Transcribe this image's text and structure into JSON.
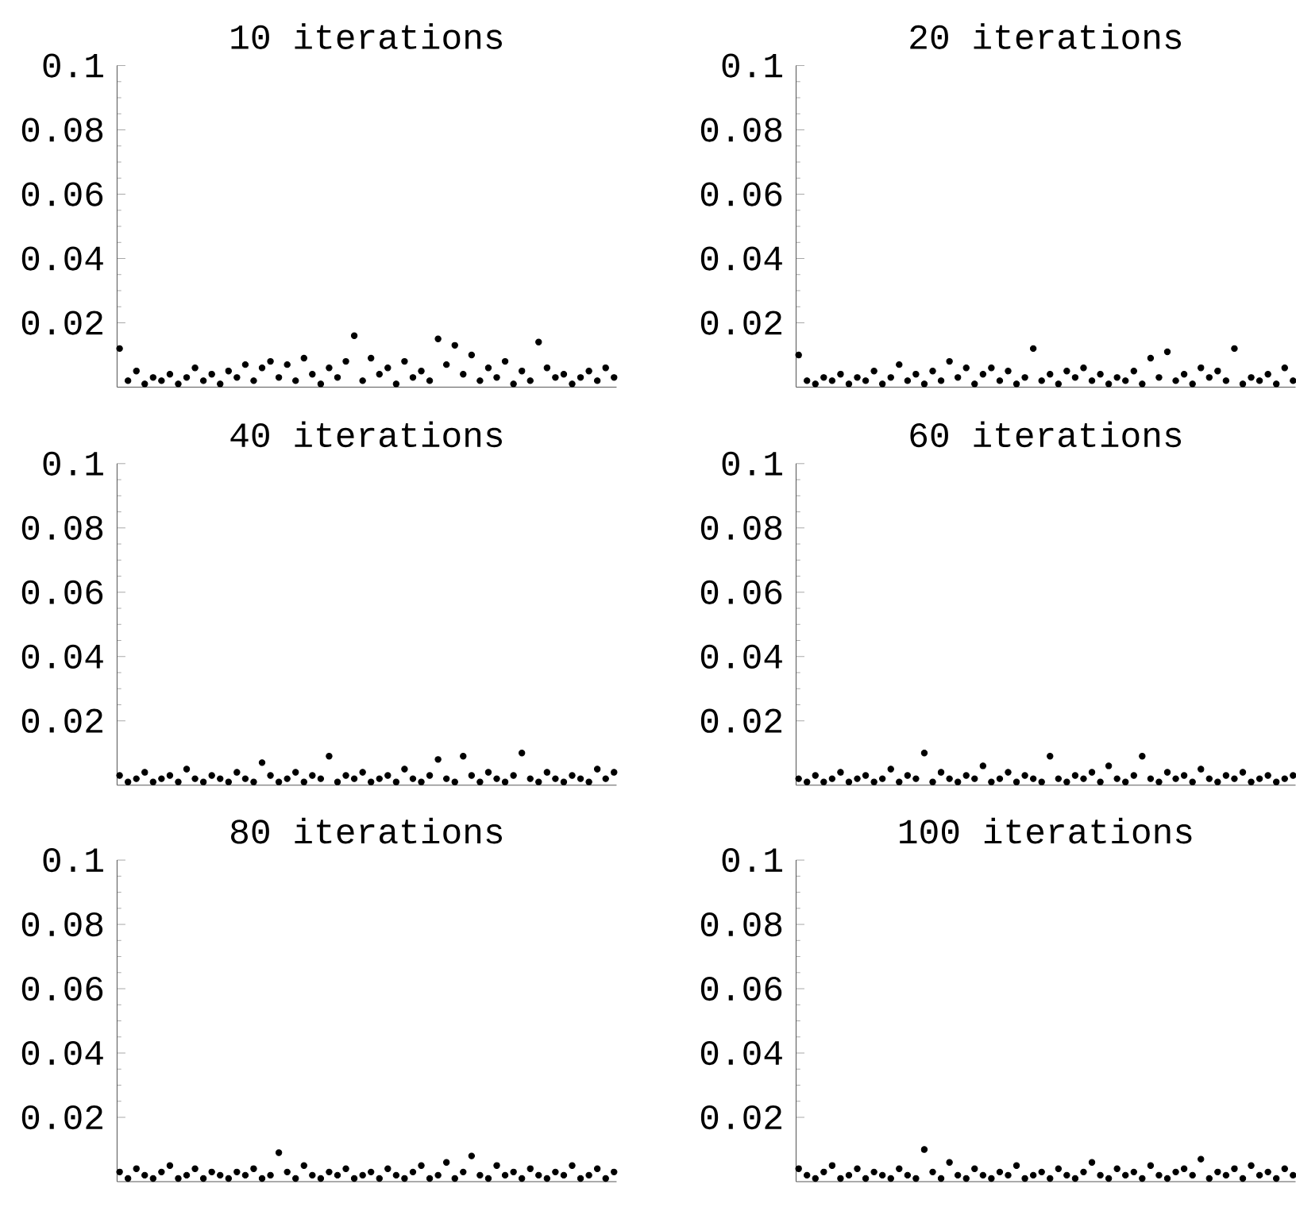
{
  "chart_data": [
    {
      "type": "scatter",
      "title": "10 iterations",
      "color": "#000000",
      "tick_labels": "y",
      "ylim": [
        0,
        0.1
      ],
      "yticks": [
        0.02,
        0.04,
        0.06,
        0.08,
        0.1
      ],
      "categories": [
        null,
        null,
        null,
        null,
        null,
        null,
        null,
        null,
        null,
        null,
        null,
        null,
        null,
        null,
        null,
        null,
        null,
        null,
        null,
        null,
        null,
        null,
        null,
        null,
        null,
        null,
        null,
        null,
        null,
        null,
        null,
        null,
        null,
        null,
        null,
        null,
        null,
        null,
        null,
        null,
        null,
        null,
        null,
        null,
        null,
        null,
        null,
        null,
        null,
        null,
        null,
        null,
        null,
        null,
        null,
        null,
        null,
        null,
        null,
        null
      ],
      "values": [
        0.012,
        0.002,
        0.005,
        0.001,
        0.003,
        0.002,
        0.004,
        0.001,
        0.003,
        0.006,
        0.002,
        0.004,
        0.001,
        0.005,
        0.003,
        0.007,
        0.002,
        0.006,
        0.008,
        0.003,
        0.007,
        0.002,
        0.009,
        0.004,
        0.001,
        0.006,
        0.003,
        0.008,
        0.016,
        0.002,
        0.009,
        0.004,
        0.006,
        0.001,
        0.008,
        0.003,
        0.005,
        0.002,
        0.015,
        0.007,
        0.013,
        0.004,
        0.01,
        0.002,
        0.006,
        0.003,
        0.008,
        0.001,
        0.005,
        0.002,
        0.014,
        0.006,
        0.003,
        0.004,
        0.001,
        0.003,
        0.005,
        0.002,
        0.006,
        0.003
      ]
    },
    {
      "type": "scatter",
      "title": "20 iterations",
      "color": "#000000",
      "tick_labels": "y",
      "ylim": [
        0,
        0.1
      ],
      "yticks": [
        0.02,
        0.04,
        0.06,
        0.08,
        0.1
      ],
      "categories": [
        null,
        null,
        null,
        null,
        null,
        null,
        null,
        null,
        null,
        null,
        null,
        null,
        null,
        null,
        null,
        null,
        null,
        null,
        null,
        null,
        null,
        null,
        null,
        null,
        null,
        null,
        null,
        null,
        null,
        null,
        null,
        null,
        null,
        null,
        null,
        null,
        null,
        null,
        null,
        null,
        null,
        null,
        null,
        null,
        null,
        null,
        null,
        null,
        null,
        null,
        null,
        null,
        null,
        null,
        null,
        null,
        null,
        null,
        null,
        null
      ],
      "values": [
        0.01,
        0.002,
        0.001,
        0.003,
        0.002,
        0.004,
        0.001,
        0.003,
        0.002,
        0.005,
        0.001,
        0.003,
        0.007,
        0.002,
        0.004,
        0.001,
        0.005,
        0.002,
        0.008,
        0.003,
        0.006,
        0.001,
        0.004,
        0.006,
        0.002,
        0.005,
        0.001,
        0.003,
        0.012,
        0.002,
        0.004,
        0.001,
        0.005,
        0.003,
        0.006,
        0.002,
        0.004,
        0.001,
        0.003,
        0.002,
        0.005,
        0.001,
        0.009,
        0.003,
        0.011,
        0.002,
        0.004,
        0.001,
        0.006,
        0.003,
        0.005,
        0.002,
        0.012,
        0.001,
        0.003,
        0.002,
        0.004,
        0.001,
        0.006,
        0.002
      ]
    },
    {
      "type": "scatter",
      "title": "40 iterations",
      "color": "#000000",
      "tick_labels": "y",
      "ylim": [
        0,
        0.1
      ],
      "yticks": [
        0.02,
        0.04,
        0.06,
        0.08,
        0.1
      ],
      "categories": [
        null,
        null,
        null,
        null,
        null,
        null,
        null,
        null,
        null,
        null,
        null,
        null,
        null,
        null,
        null,
        null,
        null,
        null,
        null,
        null,
        null,
        null,
        null,
        null,
        null,
        null,
        null,
        null,
        null,
        null,
        null,
        null,
        null,
        null,
        null,
        null,
        null,
        null,
        null,
        null,
        null,
        null,
        null,
        null,
        null,
        null,
        null,
        null,
        null,
        null,
        null,
        null,
        null,
        null,
        null,
        null,
        null,
        null,
        null,
        null
      ],
      "values": [
        0.003,
        0.001,
        0.002,
        0.004,
        0.001,
        0.002,
        0.003,
        0.001,
        0.005,
        0.002,
        0.001,
        0.003,
        0.002,
        0.001,
        0.004,
        0.002,
        0.001,
        0.007,
        0.003,
        0.001,
        0.002,
        0.004,
        0.001,
        0.003,
        0.002,
        0.009,
        0.001,
        0.003,
        0.002,
        0.004,
        0.001,
        0.002,
        0.003,
        0.001,
        0.005,
        0.002,
        0.001,
        0.003,
        0.008,
        0.002,
        0.001,
        0.009,
        0.003,
        0.001,
        0.004,
        0.002,
        0.001,
        0.003,
        0.01,
        0.002,
        0.001,
        0.004,
        0.002,
        0.001,
        0.003,
        0.002,
        0.001,
        0.005,
        0.002,
        0.004
      ]
    },
    {
      "type": "scatter",
      "title": "60 iterations",
      "color": "#000000",
      "tick_labels": "y",
      "ylim": [
        0,
        0.1
      ],
      "yticks": [
        0.02,
        0.04,
        0.06,
        0.08,
        0.1
      ],
      "categories": [
        null,
        null,
        null,
        null,
        null,
        null,
        null,
        null,
        null,
        null,
        null,
        null,
        null,
        null,
        null,
        null,
        null,
        null,
        null,
        null,
        null,
        null,
        null,
        null,
        null,
        null,
        null,
        null,
        null,
        null,
        null,
        null,
        null,
        null,
        null,
        null,
        null,
        null,
        null,
        null,
        null,
        null,
        null,
        null,
        null,
        null,
        null,
        null,
        null,
        null,
        null,
        null,
        null,
        null,
        null,
        null,
        null,
        null,
        null,
        null
      ],
      "values": [
        0.002,
        0.001,
        0.003,
        0.001,
        0.002,
        0.004,
        0.001,
        0.002,
        0.003,
        0.001,
        0.002,
        0.005,
        0.001,
        0.003,
        0.002,
        0.01,
        0.001,
        0.004,
        0.002,
        0.001,
        0.003,
        0.002,
        0.006,
        0.001,
        0.002,
        0.004,
        0.001,
        0.003,
        0.002,
        0.001,
        0.009,
        0.002,
        0.001,
        0.003,
        0.002,
        0.004,
        0.001,
        0.006,
        0.002,
        0.001,
        0.003,
        0.009,
        0.002,
        0.001,
        0.004,
        0.002,
        0.003,
        0.001,
        0.005,
        0.002,
        0.001,
        0.003,
        0.002,
        0.004,
        0.001,
        0.002,
        0.003,
        0.001,
        0.002,
        0.003
      ]
    },
    {
      "type": "scatter",
      "title": "80 iterations",
      "color": "#000000",
      "tick_labels": "y",
      "ylim": [
        0,
        0.1
      ],
      "yticks": [
        0.02,
        0.04,
        0.06,
        0.08,
        0.1
      ],
      "categories": [
        null,
        null,
        null,
        null,
        null,
        null,
        null,
        null,
        null,
        null,
        null,
        null,
        null,
        null,
        null,
        null,
        null,
        null,
        null,
        null,
        null,
        null,
        null,
        null,
        null,
        null,
        null,
        null,
        null,
        null,
        null,
        null,
        null,
        null,
        null,
        null,
        null,
        null,
        null,
        null,
        null,
        null,
        null,
        null,
        null,
        null,
        null,
        null,
        null,
        null,
        null,
        null,
        null,
        null,
        null,
        null,
        null,
        null,
        null,
        null
      ],
      "values": [
        0.003,
        0.001,
        0.004,
        0.002,
        0.001,
        0.003,
        0.005,
        0.001,
        0.002,
        0.004,
        0.001,
        0.003,
        0.002,
        0.001,
        0.003,
        0.002,
        0.004,
        0.001,
        0.002,
        0.009,
        0.003,
        0.001,
        0.005,
        0.002,
        0.001,
        0.003,
        0.002,
        0.004,
        0.001,
        0.002,
        0.003,
        0.001,
        0.004,
        0.002,
        0.001,
        0.003,
        0.005,
        0.001,
        0.002,
        0.006,
        0.001,
        0.003,
        0.008,
        0.002,
        0.001,
        0.005,
        0.002,
        0.003,
        0.001,
        0.004,
        0.002,
        0.001,
        0.003,
        0.002,
        0.005,
        0.001,
        0.002,
        0.004,
        0.001,
        0.003
      ]
    },
    {
      "type": "scatter",
      "title": "100 iterations",
      "color": "#000000",
      "tick_labels": "y",
      "ylim": [
        0,
        0.1
      ],
      "yticks": [
        0.02,
        0.04,
        0.06,
        0.08,
        0.1
      ],
      "categories": [
        null,
        null,
        null,
        null,
        null,
        null,
        null,
        null,
        null,
        null,
        null,
        null,
        null,
        null,
        null,
        null,
        null,
        null,
        null,
        null,
        null,
        null,
        null,
        null,
        null,
        null,
        null,
        null,
        null,
        null,
        null,
        null,
        null,
        null,
        null,
        null,
        null,
        null,
        null,
        null,
        null,
        null,
        null,
        null,
        null,
        null,
        null,
        null,
        null,
        null,
        null,
        null,
        null,
        null,
        null,
        null,
        null,
        null,
        null,
        null
      ],
      "values": [
        0.004,
        0.002,
        0.001,
        0.003,
        0.005,
        0.001,
        0.002,
        0.004,
        0.001,
        0.003,
        0.002,
        0.001,
        0.004,
        0.002,
        0.001,
        0.01,
        0.003,
        0.001,
        0.006,
        0.002,
        0.001,
        0.004,
        0.002,
        0.001,
        0.003,
        0.002,
        0.005,
        0.001,
        0.002,
        0.003,
        0.001,
        0.004,
        0.002,
        0.001,
        0.003,
        0.006,
        0.002,
        0.001,
        0.004,
        0.002,
        0.003,
        0.001,
        0.005,
        0.002,
        0.001,
        0.003,
        0.004,
        0.002,
        0.007,
        0.001,
        0.003,
        0.002,
        0.004,
        0.001,
        0.005,
        0.002,
        0.003,
        0.001,
        0.004,
        0.002
      ]
    }
  ]
}
